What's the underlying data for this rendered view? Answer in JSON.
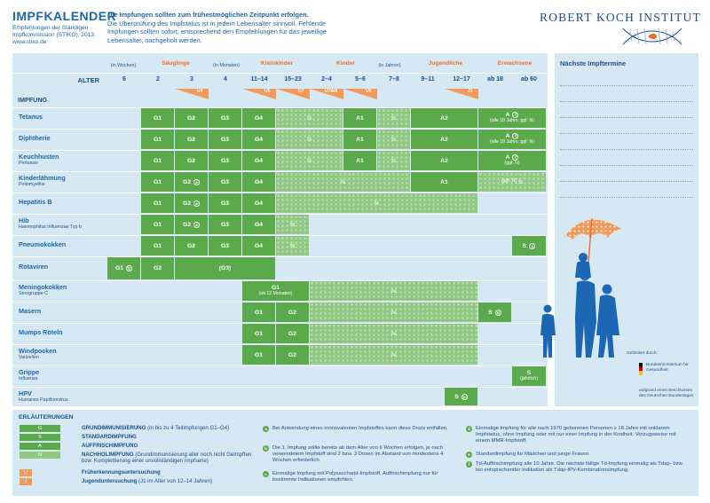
{
  "header": {
    "title": "IMPFKALENDER",
    "subtitle_lines": [
      "Empfehlungen der Ständigen",
      "Impfkommission (STIKO), 2013.",
      "www.stiko.de"
    ],
    "intro_bold": "Die Impfungen sollten zum frühestmöglichen Zeitpunkt erfolgen.",
    "intro_text": "Die Überprüfung des Impfstatus ist in jedem Lebensalter sinnvoll. Fehlende Impfungen sollten sofort, entsprechend den Empfehlungen für das jeweilige Lebensalter, nachgeholt werden.",
    "institute": "ROBERT KOCH INSTITUT"
  },
  "table": {
    "alter_label": "ALTER",
    "impfung_label": "IMPFUNG",
    "groups": [
      {
        "label": "Säuglinge",
        "unit_before": "(in Wochen)",
        "unit_after": "(in Monaten)"
      },
      {
        "label": "Kleinkinder"
      },
      {
        "label": "Kinder",
        "unit_after": "(in Jahren)"
      },
      {
        "label": "Jugendliche"
      },
      {
        "label": "Erwachsene"
      }
    ],
    "ages": [
      "6",
      "2",
      "3",
      "4",
      "11–14",
      "15–23",
      "2–4",
      "5–6",
      "7–8",
      "9–11",
      "12–17",
      "ab 18",
      "ab 60"
    ],
    "u_marks": [
      "U4",
      "U6",
      "U7",
      "U7A/8",
      "U9",
      "J1"
    ],
    "vaccines": [
      {
        "name": "Tetanus",
        "sub": ""
      },
      {
        "name": "Diphtherie",
        "sub": ""
      },
      {
        "name": "Keuchhusten",
        "sub": "Pertussis"
      },
      {
        "name": "Kinderlähmung",
        "sub": "Poliomyelitis"
      },
      {
        "name": "Hepatitis B",
        "sub": ""
      },
      {
        "name": "Hib",
        "sub": "Haemophilus influenzae Typ b"
      },
      {
        "name": "Pneumokokken",
        "sub": ""
      },
      {
        "name": "Rotaviren",
        "sub": ""
      },
      {
        "name": "Meningokokken",
        "sub": "Serogruppe C"
      },
      {
        "name": "Masern",
        "sub": ""
      },
      {
        "name": "Mumps  Röteln",
        "sub": ""
      },
      {
        "name": "Windpocken",
        "sub": "Varizellen"
      },
      {
        "name": "Grippe",
        "sub": "Influenza"
      },
      {
        "name": "HPV",
        "sub": "Humanes Papillomvirus"
      }
    ],
    "cells": {
      "G1": "G1",
      "G2": "G2",
      "G3": "G3",
      "G4": "G4",
      "N": "N",
      "A1": "A1",
      "A2": "A2",
      "A": "A",
      "S": "S",
      "G3p": "(G3)",
      "a_note_10": "(alle 10 Jahre, ggf. N)",
      "a_note_ggf": "(ggf. N)",
      "g1_note": "(ab 12 Monaten)",
      "s_note": "(jährlich)"
    },
    "footnote_marks": [
      "a",
      "b",
      "c",
      "d",
      "e",
      "f"
    ]
  },
  "right_panel": {
    "title": "Nächste Impftermine"
  },
  "funding": {
    "label": "Gefördert durch:",
    "ministry": "Bundesministerium für Gesundheit",
    "note": "aufgrund eines Beschlusses des Deutschen Bundestages"
  },
  "legend": {
    "title": "ERLÄUTERUNGEN",
    "items": [
      {
        "box": "G",
        "text_bold": "GRUNDIMMUNISIERUNG",
        "text": " (in bis zu 4 Teilimpfungen G1–G4)"
      },
      {
        "box": "S",
        "text_bold": "STANDARDIMPFUNG",
        "text": ""
      },
      {
        "box": "A",
        "text_bold": "AUFFRISCHIMPFUNG",
        "text": ""
      },
      {
        "box": "N",
        "text_bold": "NACHHOLIMPFUNG",
        "text": " (Grundimmunisierung aller noch nicht Geimpften bzw. Komplettierung einer unvollständigen Impfserie)"
      },
      {
        "box": "U",
        "text_bold": "Früherkennungsuntersuchung",
        "text": ""
      },
      {
        "box": "J",
        "text_bold": "Jugenduntersuchung",
        "text": " (J1 im Alter von 12–14 Jahren)"
      }
    ],
    "notes": [
      {
        "mark": "a",
        "text": "Bei Anwendung eines monovalenten Impfstoffes kann diese Dosis entfallen."
      },
      {
        "mark": "b",
        "text": "Die 1. Impfung sollte bereits ab dem Alter von 6 Wochen erfolgen, je nach verwendetem Impfstoff sind 2 bzw. 3 Dosen im Abstand von mindestens 4 Wochen erforderlich."
      },
      {
        "mark": "c",
        "text": "Einmalige Impfung mit Polysaccharid-Impfstoff, Auffrischimpfung nur für bestimmte Indikationen empfohlen."
      },
      {
        "mark": "d",
        "text": "Einmalige Impfung für alle nach 1970 geborenen Personen ≥ 18 Jahre mit unklarem Impfstatus, ohne Impfung oder mit nur einer Impfung in der Kindheit. Vorzugsweise mit einem MMR-Impfstoff."
      },
      {
        "mark": "e",
        "text": "Standardimpfung für Mädchen und junge Frauen."
      },
      {
        "mark": "f",
        "text": "Td-Auffrischimpfung alle 10 Jahre. Die nächste fällige Td-Impfung einmalig als Tdap- bzw. bei entsprechender Indikation als Tdap-IPV-Kombinationsimpfung."
      }
    ]
  },
  "colors": {
    "green": "#5aaa4b",
    "green_light": "#8ec883",
    "orange": "#e8712b",
    "blue": "#1b67b3",
    "panel": "#d6e8f3"
  }
}
